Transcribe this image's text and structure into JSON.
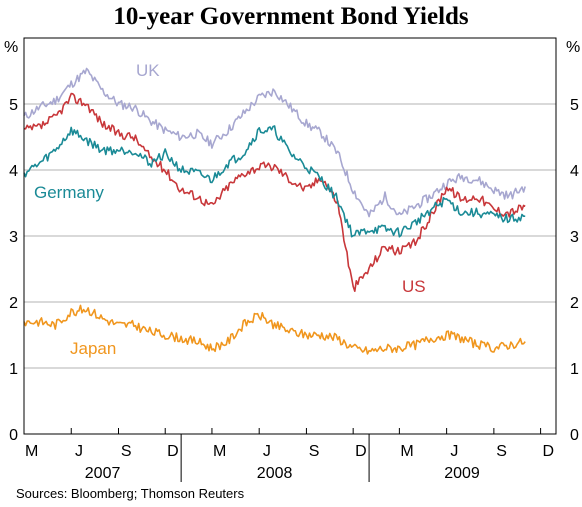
{
  "title": "10-year Government Bond Yields",
  "source": "Sources: Bloomberg; Thomson Reuters",
  "chart_data": {
    "type": "line",
    "title": "10-year Government Bond Yields",
    "y_unit": "%",
    "ylim": [
      0,
      6
    ],
    "yticks": [
      0,
      1,
      2,
      3,
      4,
      5
    ],
    "xlim": [
      "2007-03-01",
      "2009-12-31"
    ],
    "month_ticks": [
      "M",
      "J",
      "S",
      "D",
      "M",
      "J",
      "S",
      "D",
      "M",
      "J",
      "S",
      "D"
    ],
    "years": [
      "2007",
      "2008",
      "2009"
    ],
    "grid": true,
    "legend": "direct labels on lines",
    "series": [
      {
        "name": "UK",
        "color": "#a7a7d0",
        "x": [
          "2007-03-01",
          "2007-04-01",
          "2007-05-01",
          "2007-06-01",
          "2007-07-01",
          "2007-08-01",
          "2007-09-01",
          "2007-10-01",
          "2007-11-01",
          "2007-12-01",
          "2008-01-01",
          "2008-02-01",
          "2008-03-01",
          "2008-04-01",
          "2008-05-01",
          "2008-06-01",
          "2008-07-01",
          "2008-08-01",
          "2008-09-01",
          "2008-10-01",
          "2008-11-01",
          "2008-12-01",
          "2009-01-01",
          "2009-02-01",
          "2009-03-01",
          "2009-04-01",
          "2009-05-01",
          "2009-06-01",
          "2009-07-01",
          "2009-08-01",
          "2009-09-01",
          "2009-10-01",
          "2009-11-01"
        ],
        "values": [
          4.8,
          4.95,
          5.05,
          5.3,
          5.5,
          5.2,
          5.0,
          4.95,
          4.75,
          4.6,
          4.5,
          4.55,
          4.4,
          4.6,
          4.85,
          5.1,
          5.2,
          4.95,
          4.7,
          4.55,
          4.25,
          3.7,
          3.3,
          3.6,
          3.3,
          3.45,
          3.6,
          3.8,
          3.9,
          3.85,
          3.7,
          3.6,
          3.75
        ]
      },
      {
        "name": "US",
        "color": "#c8373a",
        "x": [
          "2007-03-01",
          "2007-04-01",
          "2007-05-01",
          "2007-06-01",
          "2007-07-01",
          "2007-08-01",
          "2007-09-01",
          "2007-10-01",
          "2007-11-01",
          "2007-12-01",
          "2008-01-01",
          "2008-02-01",
          "2008-03-01",
          "2008-04-01",
          "2008-05-01",
          "2008-06-01",
          "2008-07-01",
          "2008-08-01",
          "2008-09-01",
          "2008-10-01",
          "2008-11-01",
          "2008-12-01",
          "2009-01-01",
          "2009-02-01",
          "2009-03-01",
          "2009-04-01",
          "2009-05-01",
          "2009-06-01",
          "2009-07-01",
          "2009-08-01",
          "2009-09-01",
          "2009-10-01",
          "2009-11-01"
        ],
        "values": [
          4.6,
          4.65,
          4.8,
          5.1,
          5.0,
          4.7,
          4.55,
          4.5,
          4.2,
          4.0,
          3.7,
          3.6,
          3.45,
          3.75,
          3.95,
          4.05,
          4.05,
          3.85,
          3.7,
          3.9,
          3.5,
          2.2,
          2.5,
          2.85,
          2.75,
          2.9,
          3.3,
          3.75,
          3.55,
          3.6,
          3.4,
          3.35,
          3.45
        ]
      },
      {
        "name": "Germany",
        "color": "#1a8a96",
        "x": [
          "2007-03-01",
          "2007-04-01",
          "2007-05-01",
          "2007-06-01",
          "2007-07-01",
          "2007-08-01",
          "2007-09-01",
          "2007-10-01",
          "2007-11-01",
          "2007-12-01",
          "2008-01-01",
          "2008-02-01",
          "2008-03-01",
          "2008-04-01",
          "2008-05-01",
          "2008-06-01",
          "2008-07-01",
          "2008-08-01",
          "2008-09-01",
          "2008-10-01",
          "2008-11-01",
          "2008-12-01",
          "2009-01-01",
          "2009-02-01",
          "2009-03-01",
          "2009-04-01",
          "2009-05-01",
          "2009-06-01",
          "2009-07-01",
          "2009-08-01",
          "2009-09-01",
          "2009-10-01",
          "2009-11-01"
        ],
        "values": [
          3.95,
          4.1,
          4.3,
          4.6,
          4.45,
          4.3,
          4.3,
          4.3,
          4.1,
          4.25,
          4.0,
          3.95,
          3.85,
          4.1,
          4.25,
          4.6,
          4.6,
          4.25,
          4.05,
          3.85,
          3.55,
          3.0,
          3.1,
          3.1,
          3.05,
          3.2,
          3.4,
          3.55,
          3.35,
          3.35,
          3.3,
          3.25,
          3.3
        ]
      },
      {
        "name": "Japan",
        "color": "#f0961e",
        "x": [
          "2007-03-01",
          "2007-04-01",
          "2007-05-01",
          "2007-06-01",
          "2007-07-01",
          "2007-08-01",
          "2007-09-01",
          "2007-10-01",
          "2007-11-01",
          "2007-12-01",
          "2008-01-01",
          "2008-02-01",
          "2008-03-01",
          "2008-04-01",
          "2008-05-01",
          "2008-06-01",
          "2008-07-01",
          "2008-08-01",
          "2008-09-01",
          "2008-10-01",
          "2008-11-01",
          "2008-12-01",
          "2009-01-01",
          "2009-02-01",
          "2009-03-01",
          "2009-04-01",
          "2009-05-01",
          "2009-06-01",
          "2009-07-01",
          "2009-08-01",
          "2009-09-01",
          "2009-10-01",
          "2009-11-01"
        ],
        "values": [
          1.7,
          1.7,
          1.65,
          1.85,
          1.9,
          1.75,
          1.65,
          1.65,
          1.55,
          1.5,
          1.45,
          1.4,
          1.3,
          1.4,
          1.65,
          1.8,
          1.65,
          1.55,
          1.5,
          1.5,
          1.45,
          1.3,
          1.25,
          1.3,
          1.3,
          1.35,
          1.45,
          1.5,
          1.45,
          1.35,
          1.3,
          1.35,
          1.4
        ]
      }
    ]
  }
}
